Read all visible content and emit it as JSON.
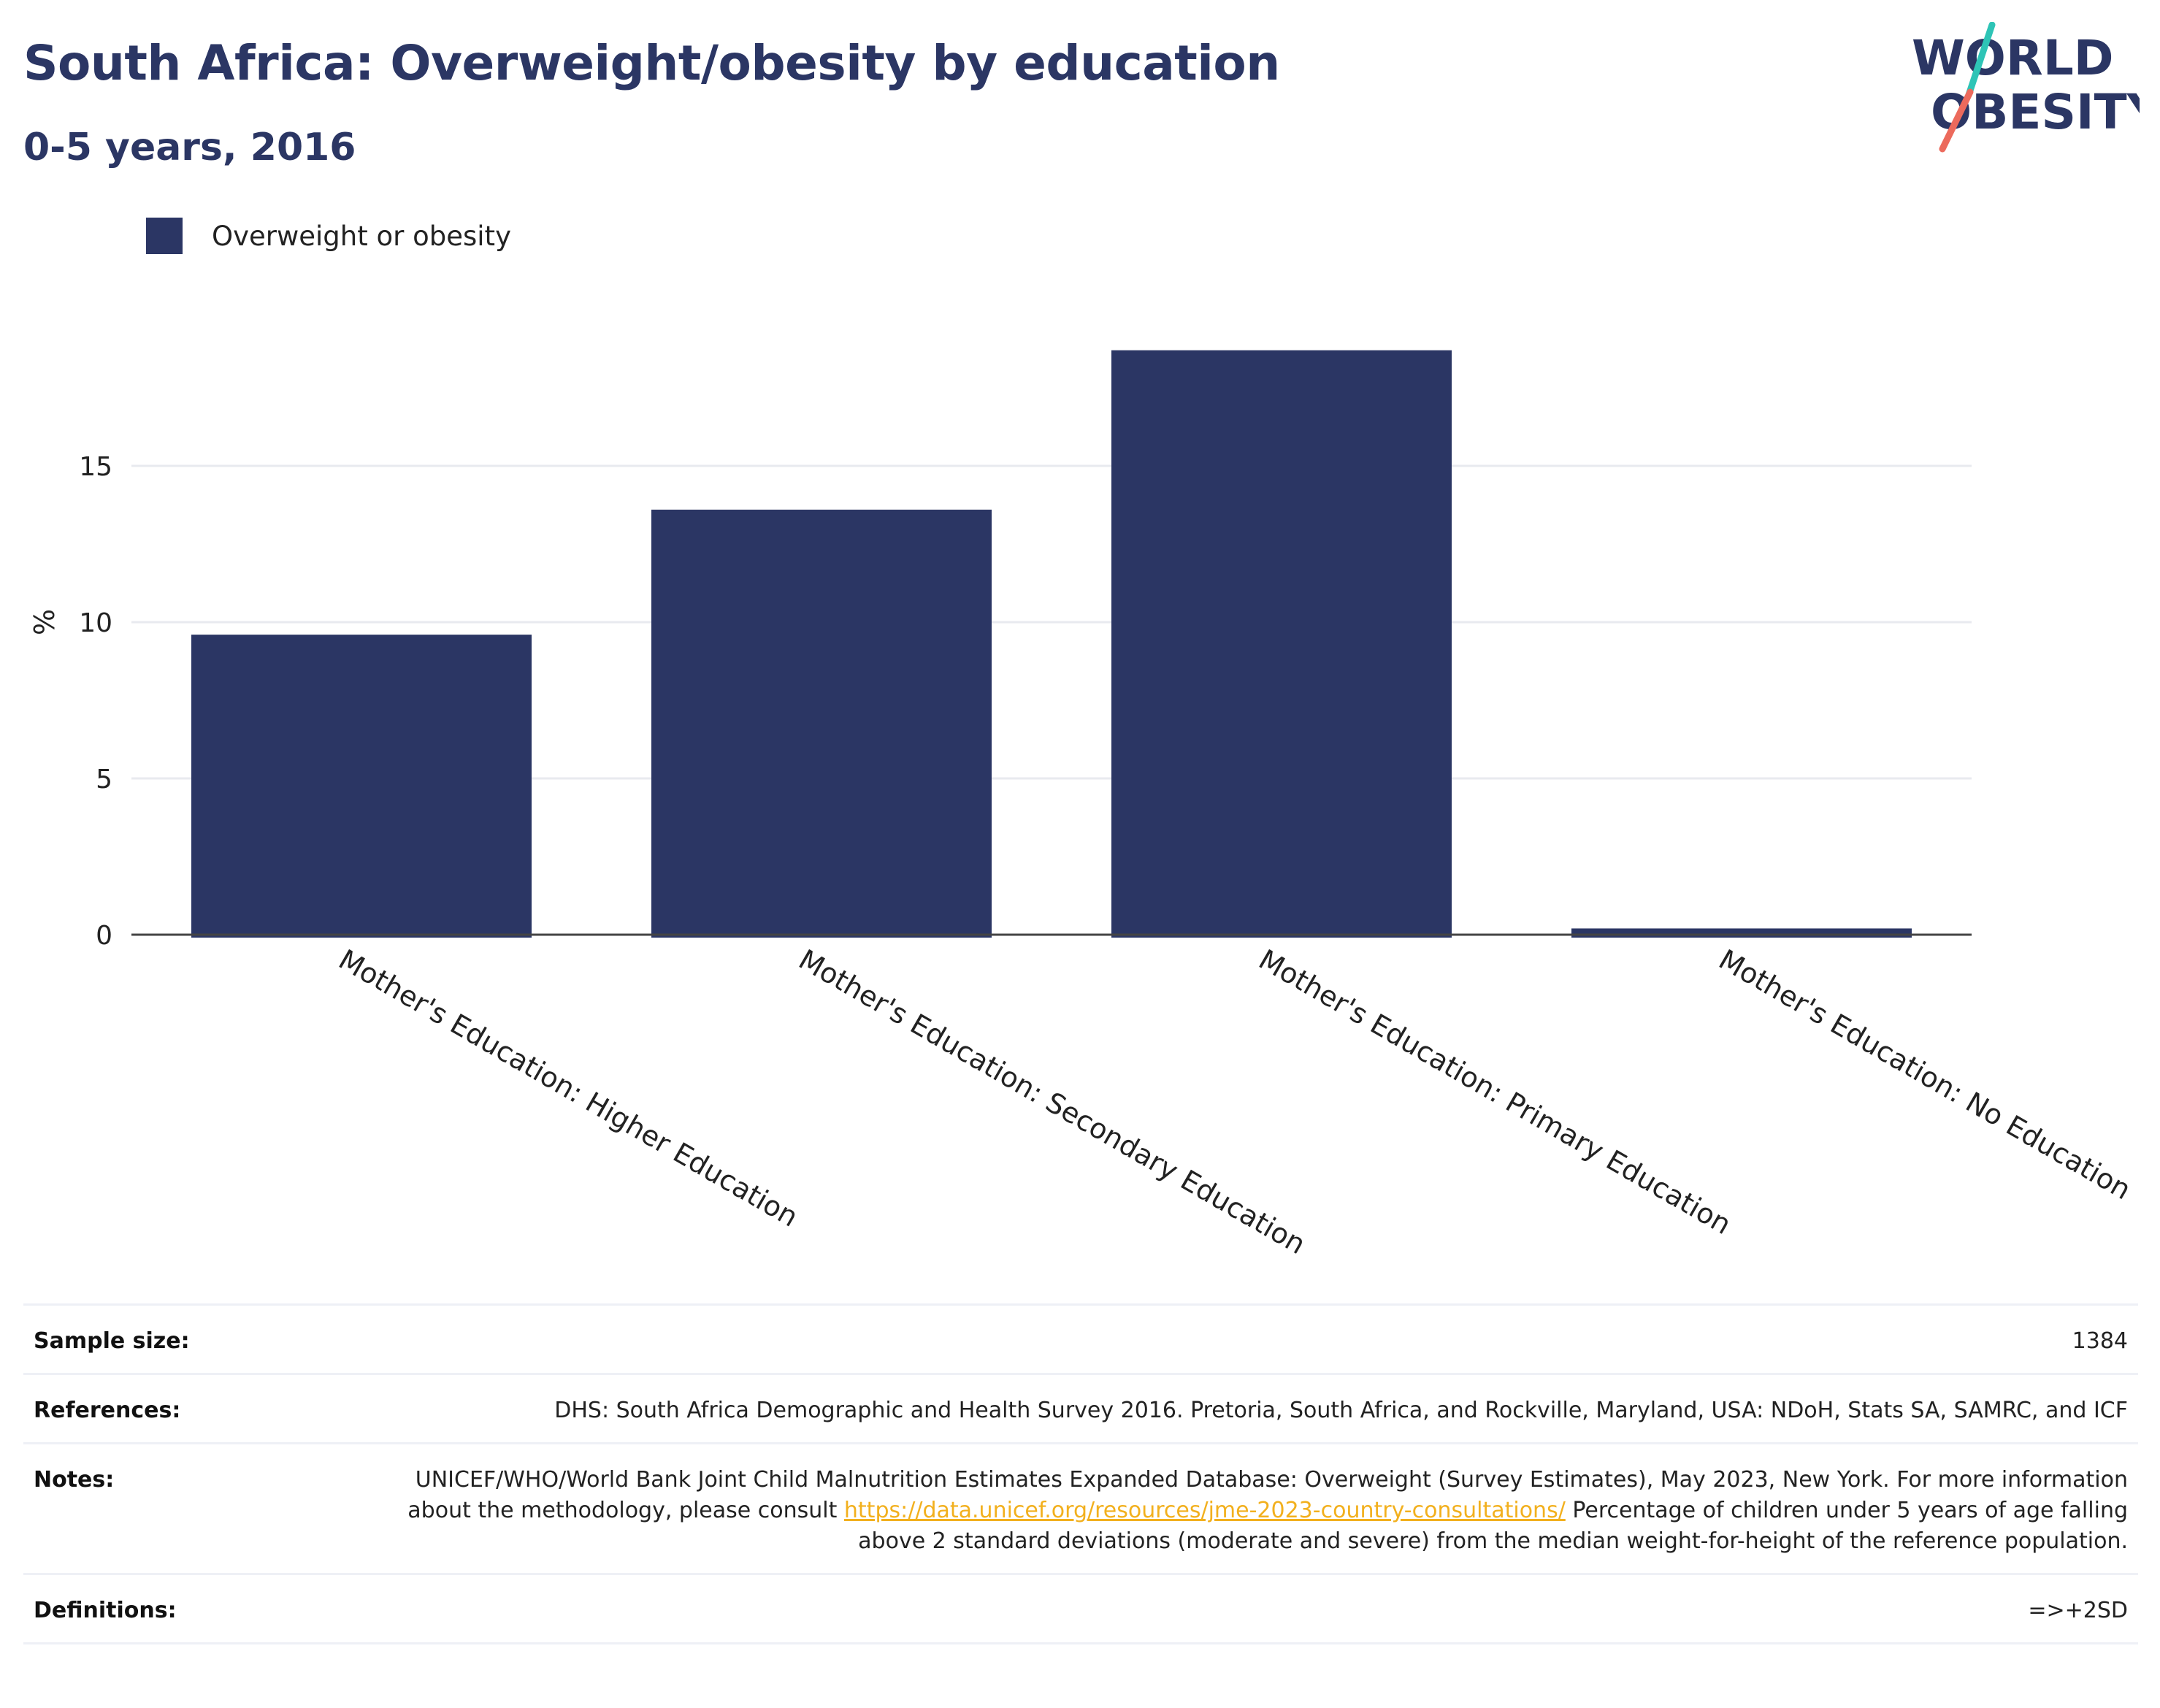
{
  "header": {
    "title": "South Africa: Overweight/obesity by education",
    "subtitle": "0-5 years, 2016",
    "logo_line1": "WORLD",
    "logo_line2": "OBESITY"
  },
  "legend": {
    "label": "Overweight or obesity",
    "color": "#2b3664"
  },
  "chart_data": {
    "type": "bar",
    "categories": [
      "Mother's Education: Higher Education",
      "Mother's Education: Secondary Education",
      "Mother's Education: Primary Education",
      "Mother's Education: No Education"
    ],
    "series": [
      {
        "name": "Overweight or obesity",
        "values": [
          9.6,
          13.6,
          18.7,
          0.2
        ]
      }
    ],
    "title": "South Africa: Overweight/obesity by education",
    "subtitle": "0-5 years, 2016",
    "xlabel": "",
    "ylabel": "%",
    "ylim": [
      0,
      20
    ],
    "yticks": [
      0,
      5,
      10,
      15
    ],
    "grid": true,
    "legend_position": "top-left",
    "bar_color": "#2b3664"
  },
  "info": {
    "sample_size_label": "Sample size:",
    "sample_size_value": "1384",
    "references_label": "References:",
    "references_value": "DHS: South Africa Demographic and Health Survey 2016. Pretoria, South Africa, and Rockville, Maryland, USA: NDoH, Stats SA, SAMRC, and ICF",
    "notes_label": "Notes:",
    "notes_value_1": "UNICEF/WHO/World Bank Joint Child Malnutrition Estimates Expanded Database: Overweight (Survey Estimates), May 2023, New York. For more information about the methodology, please consult ",
    "notes_link": "https://data.unicef.org/resources/jme-2023-country-consultations/",
    "notes_value_2": " Percentage of children under 5 years of age falling above 2 standard deviations (moderate and severe) from the median weight-for-height of the reference population.",
    "definitions_label": "Definitions:",
    "definitions_value": "=>+2SD"
  }
}
